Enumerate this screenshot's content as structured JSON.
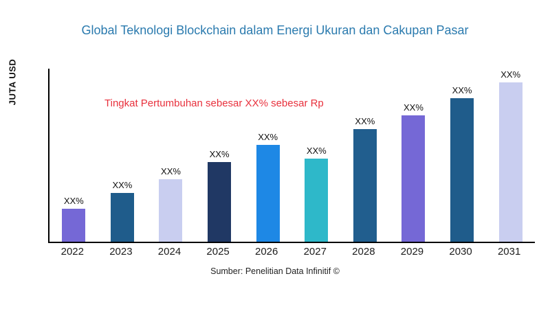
{
  "chart_data": {
    "type": "bar",
    "title": "Global Teknologi Blockchain dalam Energi Ukuran dan Cakupan Pasar",
    "title_color": "#2A7AAE",
    "ylabel": "JUTA USD",
    "xlabel": "",
    "categories": [
      "2022",
      "2023",
      "2024",
      "2025",
      "2026",
      "2027",
      "2028",
      "2029",
      "2030",
      "2031"
    ],
    "values": [
      19,
      28,
      36,
      46,
      56,
      48,
      65,
      73,
      83,
      92
    ],
    "ylim": [
      0,
      100
    ],
    "bar_labels": [
      "XX%",
      "XX%",
      "XX%",
      "XX%",
      "XX%",
      "XX%",
      "XX%",
      "XX%",
      "XX%",
      "XX%"
    ],
    "bar_colors": [
      "#7568D6",
      "#1F5C8B",
      "#C9CEF0",
      "#203864",
      "#1E88E5",
      "#2EB8C9",
      "#215E8E",
      "#7568D6",
      "#1F5C8B",
      "#C9CEF0"
    ],
    "annotation": "Tingkat Pertumbuhan sebesar XX% sebesar Rp",
    "annotation_color": "#E8303C",
    "source": "Sumber: Penelitian Data Infinitif ©",
    "grid": false,
    "legend": false
  }
}
